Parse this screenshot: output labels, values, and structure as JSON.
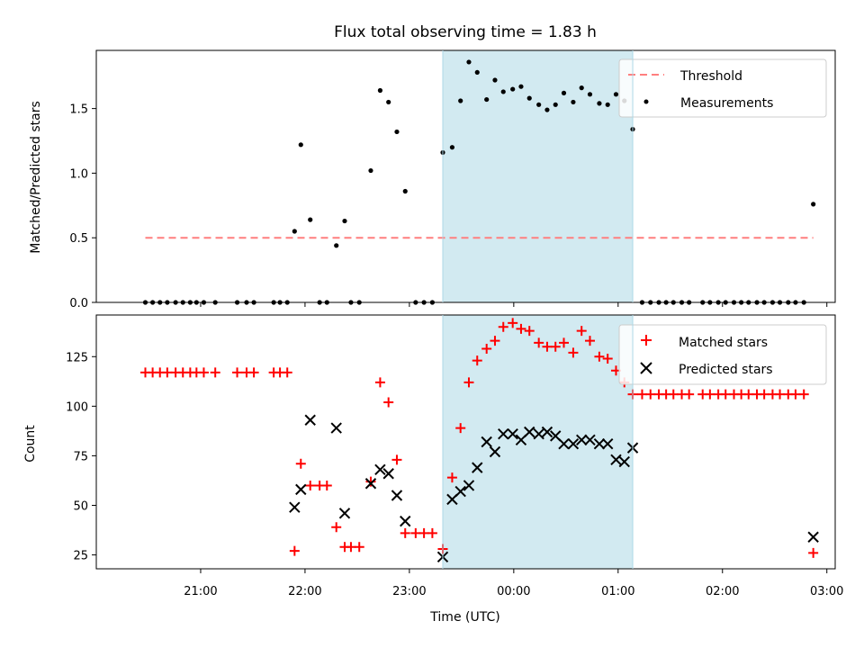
{
  "title": "Flux total observing time = 1.83 h",
  "colors": {
    "threshold": "#ff7f7f",
    "measurements": "#000000",
    "matched": "#ff0000",
    "predicted": "#000000",
    "span": "#add8e6"
  },
  "chart_data": [
    {
      "type": "scatter",
      "ylabel": "Matched/Predicted stars",
      "ylim": [
        0,
        1.95
      ],
      "yticks": [
        0.0,
        0.5,
        1.0,
        1.5
      ],
      "ytick_labels": [
        "0.0",
        "0.5",
        "1.0",
        "1.5"
      ],
      "legend_position": "top-right",
      "shaded_span": {
        "start": 23.32,
        "end": 25.14
      },
      "threshold": {
        "name": "Threshold",
        "value": 0.5,
        "x_start": 20.47,
        "x_end": 26.87
      },
      "series": [
        {
          "name": "Measurements",
          "x": [
            20.47,
            20.54,
            20.61,
            20.68,
            20.76,
            20.83,
            20.9,
            20.96,
            21.03,
            21.14,
            21.35,
            21.44,
            21.51,
            21.7,
            21.76,
            21.83,
            21.9,
            21.96,
            22.05,
            22.14,
            22.21,
            22.3,
            22.38,
            22.44,
            22.52,
            22.63,
            22.72,
            22.8,
            22.88,
            22.96,
            23.06,
            23.14,
            23.22,
            23.32,
            23.41,
            23.49,
            23.57,
            23.65,
            23.74,
            23.82,
            23.9,
            23.99,
            24.07,
            24.15,
            24.24,
            24.32,
            24.4,
            24.48,
            24.57,
            24.65,
            24.73,
            24.82,
            24.9,
            24.98,
            25.06,
            25.14,
            25.23,
            25.31,
            25.39,
            25.46,
            25.53,
            25.61,
            25.68,
            25.81,
            25.88,
            25.96,
            26.03,
            26.11,
            26.18,
            26.25,
            26.33,
            26.4,
            26.48,
            26.55,
            26.63,
            26.7,
            26.78,
            26.87
          ],
          "y": [
            0,
            0,
            0,
            0,
            0,
            0,
            0,
            0,
            0,
            0,
            0,
            0,
            0,
            0,
            0,
            0,
            0.55,
            1.22,
            0.64,
            0,
            0,
            0.44,
            0.63,
            0,
            0,
            1.02,
            1.64,
            1.55,
            1.32,
            0.86,
            0,
            0,
            0,
            1.16,
            1.2,
            1.56,
            1.86,
            1.78,
            1.57,
            1.72,
            1.63,
            1.65,
            1.67,
            1.58,
            1.53,
            1.49,
            1.53,
            1.62,
            1.55,
            1.66,
            1.61,
            1.54,
            1.53,
            1.61,
            1.56,
            1.34,
            0,
            0,
            0,
            0,
            0,
            0,
            0,
            0,
            0,
            0,
            0,
            0,
            0,
            0,
            0,
            0,
            0,
            0,
            0,
            0,
            0,
            0.76
          ]
        }
      ]
    },
    {
      "type": "scatter",
      "xlabel": "Time (UTC)",
      "ylabel": "Count",
      "xlim": [
        20.0,
        27.08
      ],
      "ylim": [
        18,
        146
      ],
      "yticks": [
        25,
        50,
        75,
        100,
        125
      ],
      "ytick_labels": [
        "25",
        "50",
        "75",
        "100",
        "125"
      ],
      "xticks": [
        21,
        22,
        23,
        24,
        25,
        26,
        27
      ],
      "xtick_labels": [
        "21:00",
        "22:00",
        "23:00",
        "00:00",
        "01:00",
        "02:00",
        "03:00"
      ],
      "legend_position": "top-right",
      "shaded_span": {
        "start": 23.32,
        "end": 25.14
      },
      "series": [
        {
          "name": "Matched stars",
          "x": [
            20.47,
            20.54,
            20.61,
            20.68,
            20.76,
            20.83,
            20.9,
            20.96,
            21.03,
            21.14,
            21.35,
            21.44,
            21.51,
            21.7,
            21.76,
            21.83,
            21.9,
            21.96,
            22.05,
            22.14,
            22.21,
            22.3,
            22.38,
            22.44,
            22.52,
            22.63,
            22.72,
            22.8,
            22.88,
            22.96,
            23.06,
            23.14,
            23.22,
            23.32,
            23.41,
            23.49,
            23.57,
            23.65,
            23.74,
            23.82,
            23.9,
            23.99,
            24.07,
            24.15,
            24.24,
            24.32,
            24.4,
            24.48,
            24.57,
            24.65,
            24.73,
            24.82,
            24.9,
            24.98,
            25.06,
            25.14,
            25.23,
            25.31,
            25.39,
            25.46,
            25.53,
            25.61,
            25.68,
            25.81,
            25.88,
            25.96,
            26.03,
            26.11,
            26.18,
            26.25,
            26.33,
            26.4,
            26.48,
            26.55,
            26.63,
            26.7,
            26.78,
            26.87
          ],
          "y": [
            117,
            117,
            117,
            117,
            117,
            117,
            117,
            117,
            117,
            117,
            117,
            117,
            117,
            117,
            117,
            117,
            27,
            71,
            60,
            60,
            60,
            39,
            29,
            29,
            29,
            62,
            112,
            102,
            73,
            36,
            36,
            36,
            36,
            28,
            64,
            89,
            112,
            123,
            129,
            133,
            140,
            142,
            139,
            138,
            132,
            130,
            130,
            132,
            127,
            138,
            133,
            125,
            124,
            118,
            112,
            106,
            106,
            106,
            106,
            106,
            106,
            106,
            106,
            106,
            106,
            106,
            106,
            106,
            106,
            106,
            106,
            106,
            106,
            106,
            106,
            106,
            106,
            26
          ]
        },
        {
          "name": "Predicted stars",
          "x": [
            21.9,
            21.96,
            22.05,
            22.3,
            22.38,
            22.63,
            22.72,
            22.8,
            22.88,
            22.96,
            23.32,
            23.41,
            23.49,
            23.57,
            23.65,
            23.74,
            23.82,
            23.9,
            23.99,
            24.07,
            24.15,
            24.24,
            24.32,
            24.4,
            24.48,
            24.57,
            24.65,
            24.73,
            24.82,
            24.9,
            24.98,
            25.06,
            25.14,
            26.87
          ],
          "y": [
            49,
            58,
            93,
            89,
            46,
            61,
            68,
            66,
            55,
            42,
            24,
            53,
            57,
            60,
            69,
            82,
            77,
            86,
            86,
            83,
            87,
            86,
            87,
            85,
            81,
            81,
            83,
            83,
            81,
            81,
            73,
            72,
            79,
            34
          ]
        }
      ]
    }
  ]
}
